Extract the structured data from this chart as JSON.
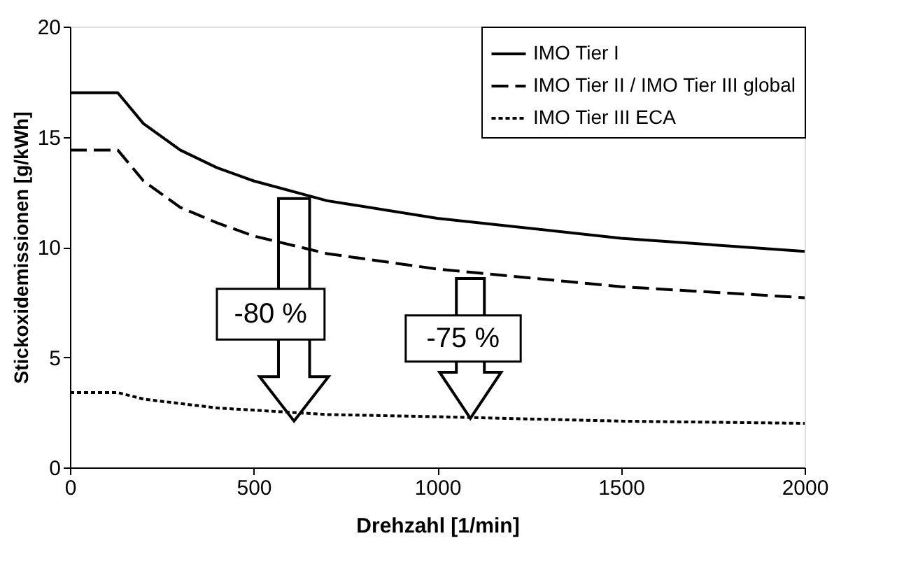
{
  "chart_data": {
    "type": "line",
    "xlabel": "Drehzahl [1/min]",
    "ylabel": "Stickoxidemissionen [g/kWh]",
    "xlim": [
      0,
      2000
    ],
    "ylim": [
      0,
      20
    ],
    "xticks": [
      0,
      500,
      1000,
      1500,
      2000
    ],
    "yticks": [
      0,
      5,
      10,
      15,
      20
    ],
    "x": [
      0,
      130,
      200,
      300,
      400,
      500,
      700,
      1000,
      1500,
      2000
    ],
    "series": [
      {
        "name": "IMO Tier I",
        "color": "#000000",
        "line_style": "solid",
        "values": [
          17.0,
          17.0,
          15.6,
          14.4,
          13.6,
          13.0,
          12.1,
          11.3,
          10.4,
          9.8
        ]
      },
      {
        "name": "IMO Tier II / IMO Tier III global",
        "color": "#000000",
        "line_style": "dashed",
        "values": [
          14.4,
          14.4,
          13.0,
          11.8,
          11.1,
          10.5,
          9.7,
          9.0,
          8.2,
          7.7
        ]
      },
      {
        "name": "IMO Tier III ECA",
        "color": "#000000",
        "line_style": "dotted",
        "values": [
          3.4,
          3.4,
          3.1,
          2.9,
          2.7,
          2.6,
          2.4,
          2.3,
          2.1,
          2.0
        ]
      }
    ],
    "annotations": [
      "-80 %",
      "-75 %"
    ],
    "legend": "top right",
    "grid": false,
    "marker": "none"
  }
}
